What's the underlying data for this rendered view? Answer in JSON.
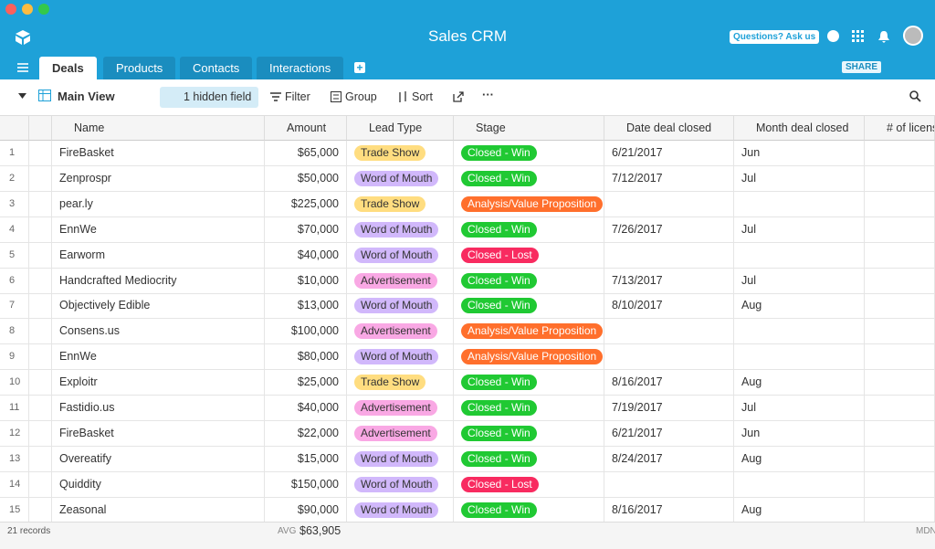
{
  "header": {
    "title": "Sales CRM",
    "help_button": "Questions? Ask us"
  },
  "tabs": [
    "Deals",
    "Products",
    "Contacts",
    "Interactions"
  ],
  "share": "SHARE",
  "toolbar": {
    "view": "Main View",
    "hidden": "1 hidden field",
    "filter": "Filter",
    "group": "Group",
    "sort": "Sort"
  },
  "table": {
    "columns": [
      "Name",
      "Amount",
      "Lead Type",
      "Stage",
      "Date deal closed",
      "Month deal closed",
      "# of licens"
    ],
    "rows": [
      {
        "n": 1,
        "name": "FireBasket",
        "amount": "$65,000",
        "lead_type": {
          "text": "Trade Show",
          "color": "#ffdd80"
        },
        "stage": {
          "text": "Closed - Win",
          "color": "#20c933"
        },
        "date": "6/21/2017",
        "month": "Jun"
      },
      {
        "n": 2,
        "name": "Zenprospr",
        "amount": "$50,000",
        "lead_type": {
          "text": "Word of Mouth",
          "color": "#d1b8fb"
        },
        "stage": {
          "text": "Closed - Win",
          "color": "#20c933"
        },
        "date": "7/12/2017",
        "month": "Jul"
      },
      {
        "n": 3,
        "name": "pear.ly",
        "amount": "$225,000",
        "lead_type": {
          "text": "Trade Show",
          "color": "#ffdd80"
        },
        "stage": {
          "text": "Analysis/Value Proposition",
          "color": "#ff6f2c"
        },
        "date": null,
        "month": null
      },
      {
        "n": 4,
        "name": "EnnWe",
        "amount": "$70,000",
        "lead_type": {
          "text": "Word of Mouth",
          "color": "#d1b8fb"
        },
        "stage": {
          "text": "Closed - Win",
          "color": "#20c933"
        },
        "date": "7/26/2017",
        "month": "Jul"
      },
      {
        "n": 5,
        "name": "Earworm",
        "amount": "$40,000",
        "lead_type": {
          "text": "Word of Mouth",
          "color": "#d1b8fb"
        },
        "stage": {
          "text": "Closed - Lost",
          "color": "#f82b60"
        },
        "date": null,
        "month": null
      },
      {
        "n": 6,
        "name": "Handcrafted Mediocrity",
        "amount": "$10,000",
        "lead_type": {
          "text": "Advertisement",
          "color": "#f9a8e4"
        },
        "stage": {
          "text": "Closed - Win",
          "color": "#20c933"
        },
        "date": "7/13/2017",
        "month": "Jul"
      },
      {
        "n": 7,
        "name": "Objectively Edible",
        "amount": "$13,000",
        "lead_type": {
          "text": "Word of Mouth",
          "color": "#d1b8fb"
        },
        "stage": {
          "text": "Closed - Win",
          "color": "#20c933"
        },
        "date": "8/10/2017",
        "month": "Aug"
      },
      {
        "n": 8,
        "name": "Consens.us",
        "amount": "$100,000",
        "lead_type": {
          "text": "Advertisement",
          "color": "#f9a8e4"
        },
        "stage": {
          "text": "Analysis/Value Proposition",
          "color": "#ff6f2c"
        },
        "date": null,
        "month": null
      },
      {
        "n": 9,
        "name": "EnnWe",
        "amount": "$80,000",
        "lead_type": {
          "text": "Word of Mouth",
          "color": "#d1b8fb"
        },
        "stage": {
          "text": "Analysis/Value Proposition",
          "color": "#ff6f2c"
        },
        "date": null,
        "month": null
      },
      {
        "n": 10,
        "name": "Exploitr",
        "amount": "$25,000",
        "lead_type": {
          "text": "Trade Show",
          "color": "#ffdd80"
        },
        "stage": {
          "text": "Closed - Win",
          "color": "#20c933"
        },
        "date": "8/16/2017",
        "month": "Aug"
      },
      {
        "n": 11,
        "name": "Fastidio.us",
        "amount": "$40,000",
        "lead_type": {
          "text": "Advertisement",
          "color": "#f9a8e4"
        },
        "stage": {
          "text": "Closed - Win",
          "color": "#20c933"
        },
        "date": "7/19/2017",
        "month": "Jul"
      },
      {
        "n": 12,
        "name": "FireBasket",
        "amount": "$22,000",
        "lead_type": {
          "text": "Advertisement",
          "color": "#f9a8e4"
        },
        "stage": {
          "text": "Closed - Win",
          "color": "#20c933"
        },
        "date": "6/21/2017",
        "month": "Jun"
      },
      {
        "n": 13,
        "name": "Overeatify",
        "amount": "$15,000",
        "lead_type": {
          "text": "Word of Mouth",
          "color": "#d1b8fb"
        },
        "stage": {
          "text": "Closed - Win",
          "color": "#20c933"
        },
        "date": "8/24/2017",
        "month": "Aug"
      },
      {
        "n": 14,
        "name": "Quiddity",
        "amount": "$150,000",
        "lead_type": {
          "text": "Word of Mouth",
          "color": "#d1b8fb"
        },
        "stage": {
          "text": "Closed - Lost",
          "color": "#f82b60"
        },
        "date": null,
        "month": null
      },
      {
        "n": 15,
        "name": "Zeasonal",
        "amount": "$90,000",
        "lead_type": {
          "text": "Word of Mouth",
          "color": "#d1b8fb"
        },
        "stage": {
          "text": "Closed - Win",
          "color": "#20c933"
        },
        "date": "8/16/2017",
        "month": "Aug"
      }
    ]
  },
  "footer": {
    "records": "21 records",
    "avg_label": "AVG",
    "avg_value": "$63,905",
    "mdn_label": "MDN"
  }
}
